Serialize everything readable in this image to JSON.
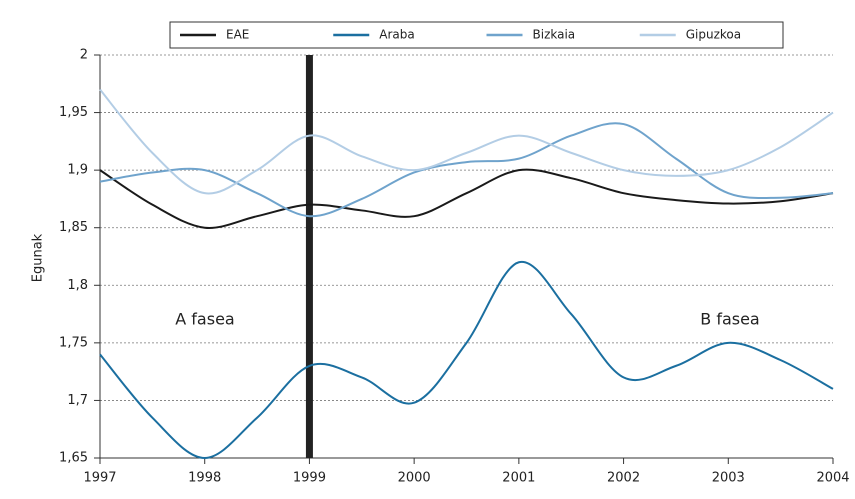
{
  "chart_data": {
    "type": "line",
    "y_label": "Egunak",
    "annotations": [
      "A fasea",
      "B fasea"
    ],
    "x": [
      1997,
      1997.5,
      1998,
      1998.5,
      1999,
      1999.5,
      2000,
      2000.5,
      2001,
      2001.5,
      2002,
      2002.5,
      2003,
      2003.5,
      2004
    ],
    "series": [
      {
        "name": "EAE",
        "color": "#1a1a1a",
        "values": [
          1.9,
          1.87,
          1.85,
          1.86,
          1.87,
          1.865,
          1.86,
          1.88,
          1.9,
          1.893,
          1.88,
          1.874,
          1.871,
          1.873,
          1.88
        ]
      },
      {
        "name": "Araba",
        "color": "#1b6fa0",
        "values": [
          1.74,
          1.685,
          1.65,
          1.685,
          1.73,
          1.72,
          1.698,
          1.75,
          1.82,
          1.775,
          1.72,
          1.73,
          1.75,
          1.735,
          1.71
        ]
      },
      {
        "name": "Bizkaia",
        "color": "#6fa3cc",
        "values": [
          1.89,
          1.898,
          1.9,
          1.88,
          1.86,
          1.875,
          1.898,
          1.907,
          1.91,
          1.93,
          1.94,
          1.91,
          1.88,
          1.876,
          1.88
        ]
      },
      {
        "name": "Gipuzkoa",
        "color": "#b3cde5",
        "values": [
          1.97,
          1.915,
          1.88,
          1.9,
          1.93,
          1.912,
          1.9,
          1.915,
          1.93,
          1.915,
          1.9,
          1.895,
          1.9,
          1.92,
          1.95
        ]
      }
    ],
    "vline": 1999,
    "xlim": [
      1997,
      2004
    ],
    "xticks": [
      1997,
      1998,
      1999,
      2000,
      2001,
      2002,
      2003,
      2004
    ],
    "ylim": [
      1.65,
      2
    ],
    "yticks": [
      {
        "value": 1.65,
        "label": "1,65"
      },
      {
        "value": 1.7,
        "label": "1,7"
      },
      {
        "value": 1.75,
        "label": "1,75"
      },
      {
        "value": 1.8,
        "label": "1,8"
      },
      {
        "value": 1.85,
        "label": "1,85"
      },
      {
        "value": 1.9,
        "label": "1,9"
      },
      {
        "value": 1.95,
        "label": "1,95"
      },
      2
    ],
    "grid": true,
    "legend": "top"
  }
}
